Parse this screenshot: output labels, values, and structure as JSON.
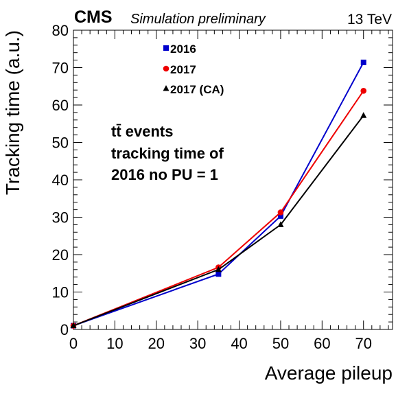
{
  "header": {
    "experiment": "CMS",
    "subtitle": "Simulation preliminary",
    "energy": "13 TeV"
  },
  "annotation": {
    "line1": "tt̄ events",
    "line2": "tracking time of",
    "line3": "2016 no PU = 1"
  },
  "chart_data": {
    "type": "line",
    "title": "",
    "xlabel": "Average pileup",
    "ylabel": "Tracking time (a.u.)",
    "xlim": [
      0,
      77
    ],
    "ylim": [
      0,
      80
    ],
    "xticks": [
      0,
      10,
      20,
      30,
      40,
      50,
      60,
      70
    ],
    "yticks": [
      0,
      10,
      20,
      30,
      40,
      50,
      60,
      70,
      80
    ],
    "legend_position": "top-center",
    "grid": false,
    "series": [
      {
        "name": "2016",
        "color": "#0000cc",
        "marker": "square",
        "x": [
          0,
          35,
          50,
          70
        ],
        "y": [
          1,
          14.8,
          30.3,
          71.4
        ]
      },
      {
        "name": "2017",
        "color": "#ee0000",
        "marker": "circle",
        "x": [
          0,
          35,
          50,
          70
        ],
        "y": [
          1,
          16.6,
          31.3,
          63.8
        ]
      },
      {
        "name": "2017 (CA)",
        "color": "#000000",
        "marker": "triangle",
        "x": [
          0,
          35,
          50,
          70
        ],
        "y": [
          1,
          16.0,
          28.0,
          57.2
        ]
      }
    ]
  }
}
